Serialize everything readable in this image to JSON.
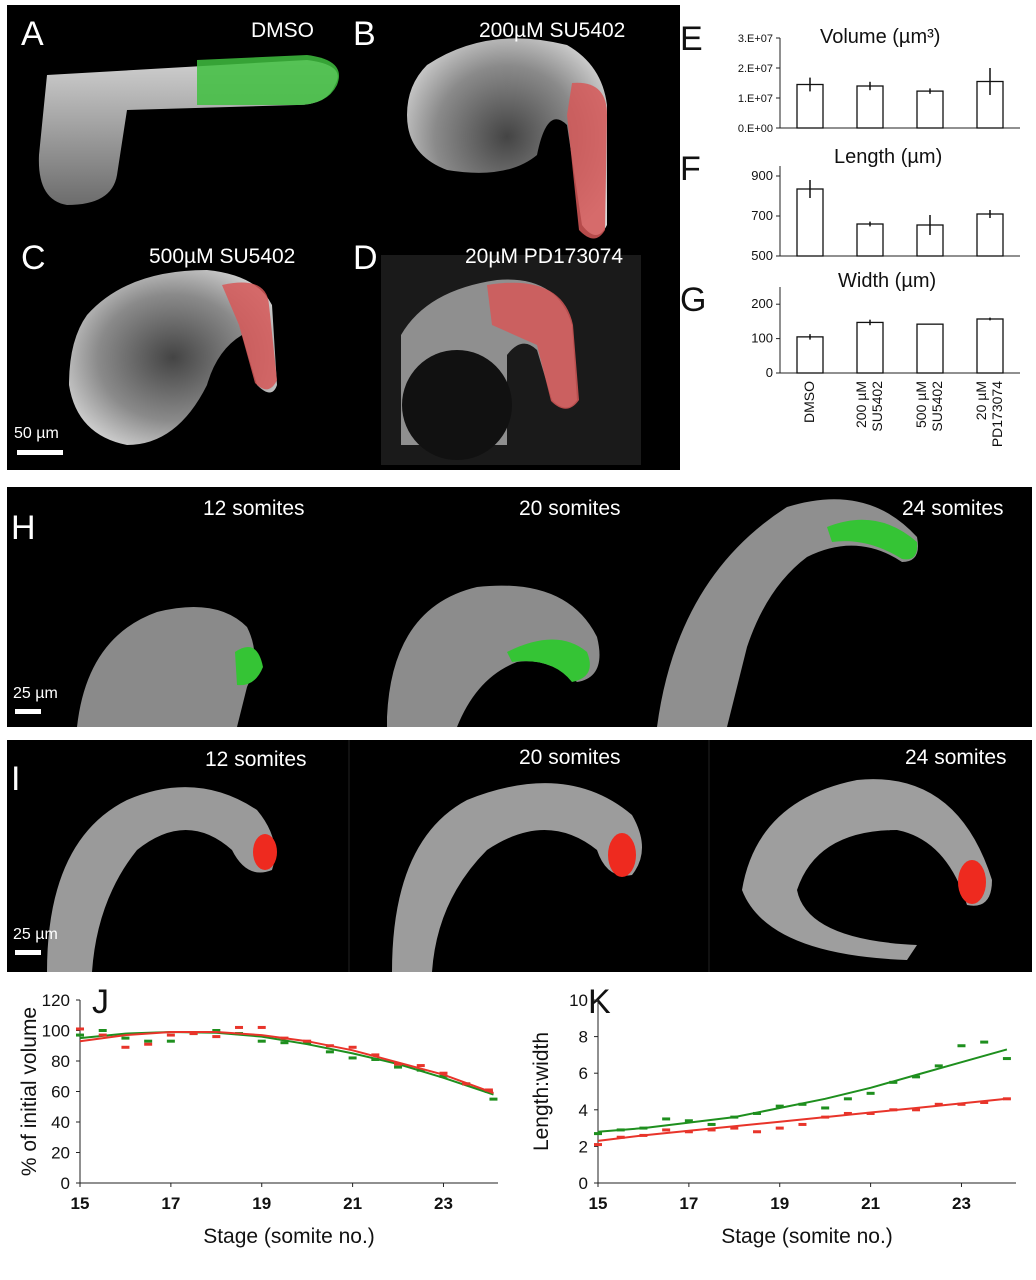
{
  "panels_top": {
    "A": {
      "letter": "A",
      "condition": "DMSO"
    },
    "B": {
      "letter": "B",
      "condition": "200µM SU5402"
    },
    "C": {
      "letter": "C",
      "condition": "500µM SU5402"
    },
    "D": {
      "letter": "D",
      "condition": "20µM PD173074"
    },
    "scale": "50 µm"
  },
  "panel_H": {
    "letter": "H",
    "stages": [
      "12 somites",
      "20 somites",
      "24 somites"
    ],
    "scale": "25 µm"
  },
  "panel_I": {
    "letter": "I",
    "stages": [
      "12 somites",
      "20 somites",
      "24 somites"
    ],
    "scale": "25 µm"
  },
  "colors": {
    "green": "#1e8f1e",
    "red": "#e8342a",
    "highlight_green": "#35d435",
    "highlight_red": "#e84a4a"
  },
  "chart_data": [
    {
      "id": "E",
      "letter": "E",
      "type": "bar",
      "title": "Volume (µm³)",
      "categories": [
        "DMSO",
        "200 µM SU5402",
        "500 µM SU5402",
        "20 µM PD173074"
      ],
      "values": [
        14500000,
        14000000,
        12300000,
        15500000
      ],
      "errors": [
        2300000,
        1400000,
        900000,
        4500000
      ],
      "ylim": [
        0,
        30000000
      ],
      "ticks": [
        0,
        10000000,
        20000000,
        30000000
      ],
      "tick_labels": [
        "0.E+00",
        "1.E+07",
        "2.E+07",
        "3.E+07"
      ]
    },
    {
      "id": "F",
      "letter": "F",
      "type": "bar",
      "title": "Length (µm)",
      "categories": [
        "DMSO",
        "200 µM SU5402",
        "500 µM SU5402",
        "20 µM PD173074"
      ],
      "values": [
        835,
        660,
        655,
        710
      ],
      "errors": [
        45,
        12,
        50,
        20
      ],
      "ylim": [
        500,
        950
      ],
      "ticks": [
        500,
        700,
        900
      ],
      "tick_labels": [
        "500",
        "700",
        "900"
      ]
    },
    {
      "id": "G",
      "letter": "G",
      "type": "bar",
      "title": "Width (µm)",
      "categories": [
        "DMSO",
        "200 µM SU5402",
        "500 µM SU5402",
        "20 µM PD173074"
      ],
      "values": [
        105,
        147,
        142,
        157
      ],
      "errors": [
        8,
        8,
        0,
        4
      ],
      "ylim": [
        0,
        250
      ],
      "ticks": [
        0,
        100,
        200
      ],
      "tick_labels": [
        "0",
        "100",
        "200"
      ],
      "xtick_lines": [
        [
          "DMSO"
        ],
        [
          "200 µM",
          "SU5402"
        ],
        [
          "500 µM",
          "SU5402"
        ],
        [
          "20 µM",
          "PD173074"
        ]
      ]
    },
    {
      "id": "J",
      "letter": "J",
      "type": "scatter",
      "xlabel": "Stage (somite no.)",
      "ylabel": "% of initial volume",
      "xlim": [
        15,
        24.2
      ],
      "ylim": [
        0,
        120
      ],
      "xticks": [
        15,
        17,
        19,
        21,
        23
      ],
      "yticks": [
        0,
        20,
        40,
        60,
        80,
        100,
        120
      ],
      "series": [
        {
          "color": "green",
          "points": [
            [
              15,
              97
            ],
            [
              15.5,
              100
            ],
            [
              16,
              95
            ],
            [
              16.5,
              93
            ],
            [
              17,
              93
            ],
            [
              17.5,
              98
            ],
            [
              18,
              100
            ],
            [
              18.5,
              98
            ],
            [
              19,
              93
            ],
            [
              19.5,
              92
            ],
            [
              20,
              92
            ],
            [
              20.5,
              86
            ],
            [
              21,
              82
            ],
            [
              21.5,
              81
            ],
            [
              22,
              76
            ],
            [
              22.5,
              74
            ],
            [
              23,
              70
            ],
            [
              23.5,
              65
            ],
            [
              24,
              60
            ],
            [
              24.1,
              55
            ]
          ],
          "fit": [
            [
              15,
              95
            ],
            [
              16,
              98
            ],
            [
              17,
              99
            ],
            [
              18,
              98.5
            ],
            [
              19,
              96
            ],
            [
              20,
              91
            ],
            [
              21,
              85
            ],
            [
              22,
              78
            ],
            [
              23,
              69
            ],
            [
              24.1,
              58
            ]
          ]
        },
        {
          "color": "red",
          "points": [
            [
              15,
              101
            ],
            [
              15.5,
              97
            ],
            [
              16,
              89
            ],
            [
              16.5,
              91
            ],
            [
              17,
              97
            ],
            [
              17.5,
              98
            ],
            [
              18,
              96
            ],
            [
              18.5,
              102
            ],
            [
              19,
              102
            ],
            [
              19.5,
              95
            ],
            [
              20,
              93
            ],
            [
              20.5,
              90
            ],
            [
              21,
              89
            ],
            [
              21.5,
              84
            ],
            [
              22,
              78
            ],
            [
              22.5,
              77
            ],
            [
              23,
              72
            ],
            [
              23.5,
              65
            ],
            [
              24,
              61
            ]
          ],
          "fit": [
            [
              15,
              93
            ],
            [
              16,
              97
            ],
            [
              17,
              99
            ],
            [
              18,
              99
            ],
            [
              19,
              97
            ],
            [
              20,
              93
            ],
            [
              21,
              87
            ],
            [
              22,
              79
            ],
            [
              23,
              71
            ],
            [
              24.1,
              59
            ]
          ]
        }
      ]
    },
    {
      "id": "K",
      "letter": "K",
      "type": "scatter",
      "xlabel": "Stage (somite no.)",
      "ylabel": "Length:width",
      "xlim": [
        15,
        24.2
      ],
      "ylim": [
        0,
        10
      ],
      "xticks": [
        15,
        17,
        19,
        21,
        23
      ],
      "yticks": [
        0,
        2,
        4,
        6,
        8,
        10
      ],
      "series": [
        {
          "color": "green",
          "points": [
            [
              15,
              2.7
            ],
            [
              15.5,
              2.9
            ],
            [
              16,
              3.0
            ],
            [
              16.5,
              3.5
            ],
            [
              17,
              3.4
            ],
            [
              17.5,
              3.2
            ],
            [
              18,
              3.6
            ],
            [
              18.5,
              3.8
            ],
            [
              19,
              4.2
            ],
            [
              19.5,
              4.3
            ],
            [
              20,
              4.1
            ],
            [
              20.5,
              4.6
            ],
            [
              21,
              4.9
            ],
            [
              21.5,
              5.5
            ],
            [
              22,
              5.8
            ],
            [
              22.5,
              6.4
            ],
            [
              23,
              7.5
            ],
            [
              23.5,
              7.7
            ],
            [
              24,
              6.8
            ]
          ],
          "fit": [
            [
              15,
              2.8
            ],
            [
              16,
              3.0
            ],
            [
              17,
              3.3
            ],
            [
              18,
              3.6
            ],
            [
              19,
              4.1
            ],
            [
              20,
              4.6
            ],
            [
              21,
              5.2
            ],
            [
              22,
              5.9
            ],
            [
              23,
              6.6
            ],
            [
              24,
              7.3
            ]
          ]
        },
        {
          "color": "red",
          "points": [
            [
              15,
              2.1
            ],
            [
              15.5,
              2.5
            ],
            [
              16,
              2.6
            ],
            [
              16.5,
              2.9
            ],
            [
              17,
              2.8
            ],
            [
              17.5,
              2.9
            ],
            [
              18,
              3.0
            ],
            [
              18.5,
              2.8
            ],
            [
              19,
              3.0
            ],
            [
              19.5,
              3.2
            ],
            [
              20,
              3.6
            ],
            [
              20.5,
              3.8
            ],
            [
              21,
              3.8
            ],
            [
              21.5,
              4.0
            ],
            [
              22,
              4.0
            ],
            [
              22.5,
              4.3
            ],
            [
              23,
              4.3
            ],
            [
              23.5,
              4.4
            ],
            [
              24,
              4.6
            ]
          ],
          "fit": [
            [
              15,
              2.3
            ],
            [
              16,
              2.6
            ],
            [
              17,
              2.85
            ],
            [
              18,
              3.1
            ],
            [
              19,
              3.35
            ],
            [
              20,
              3.6
            ],
            [
              21,
              3.85
            ],
            [
              22,
              4.1
            ],
            [
              23,
              4.35
            ],
            [
              24,
              4.6
            ]
          ]
        }
      ]
    }
  ]
}
